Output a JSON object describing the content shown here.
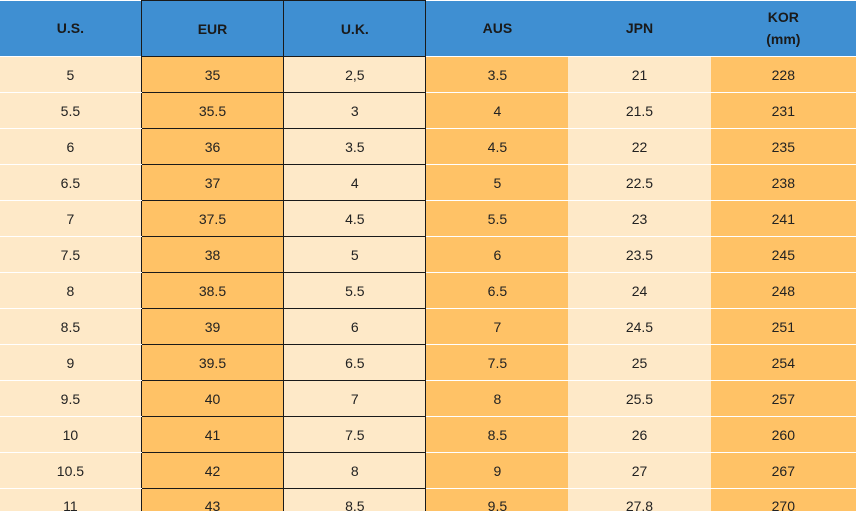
{
  "chart_data": {
    "type": "table",
    "columns": [
      {
        "label": "U.S.",
        "header_bg": "#3f8fd2",
        "cell_bg": "#fee9c8",
        "grid": false
      },
      {
        "label": "EUR",
        "header_bg": "#3f8fd2",
        "cell_bg": "#ffc266",
        "grid": true
      },
      {
        "label": "U.K.",
        "header_bg": "#3f8fd2",
        "cell_bg": "#fee9c8",
        "grid": true
      },
      {
        "label": "AUS",
        "header_bg": "#3f8fd2",
        "cell_bg": "#ffc266",
        "grid": false
      },
      {
        "label": "JPN",
        "header_bg": "#3f8fd2",
        "cell_bg": "#fee9c8",
        "grid": false
      },
      {
        "label": "KOR\n(mm)",
        "header_bg": "#3f8fd2",
        "cell_bg": "#ffc266",
        "grid": false
      }
    ],
    "rows": [
      [
        "5",
        "35",
        "2,5",
        "3.5",
        "21",
        "228"
      ],
      [
        "5.5",
        "35.5",
        "3",
        "4",
        "21.5",
        "231"
      ],
      [
        "6",
        "36",
        "3.5",
        "4.5",
        "22",
        "235"
      ],
      [
        "6.5",
        "37",
        "4",
        "5",
        "22.5",
        "238"
      ],
      [
        "7",
        "37.5",
        "4.5",
        "5.5",
        "23",
        "241"
      ],
      [
        "7.5",
        "38",
        "5",
        "6",
        "23.5",
        "245"
      ],
      [
        "8",
        "38.5",
        "5.5",
        "6.5",
        "24",
        "248"
      ],
      [
        "8.5",
        "39",
        "6",
        "7",
        "24.5",
        "251"
      ],
      [
        "9",
        "39.5",
        "6.5",
        "7.5",
        "25",
        "254"
      ],
      [
        "9.5",
        "40",
        "7",
        "8",
        "25.5",
        "257"
      ],
      [
        "10",
        "41",
        "7.5",
        "8.5",
        "26",
        "260"
      ],
      [
        "10.5",
        "42",
        "8",
        "9",
        "27",
        "267"
      ],
      [
        "11",
        "43",
        "8.5",
        "9.5",
        "27.8",
        "270"
      ]
    ]
  }
}
